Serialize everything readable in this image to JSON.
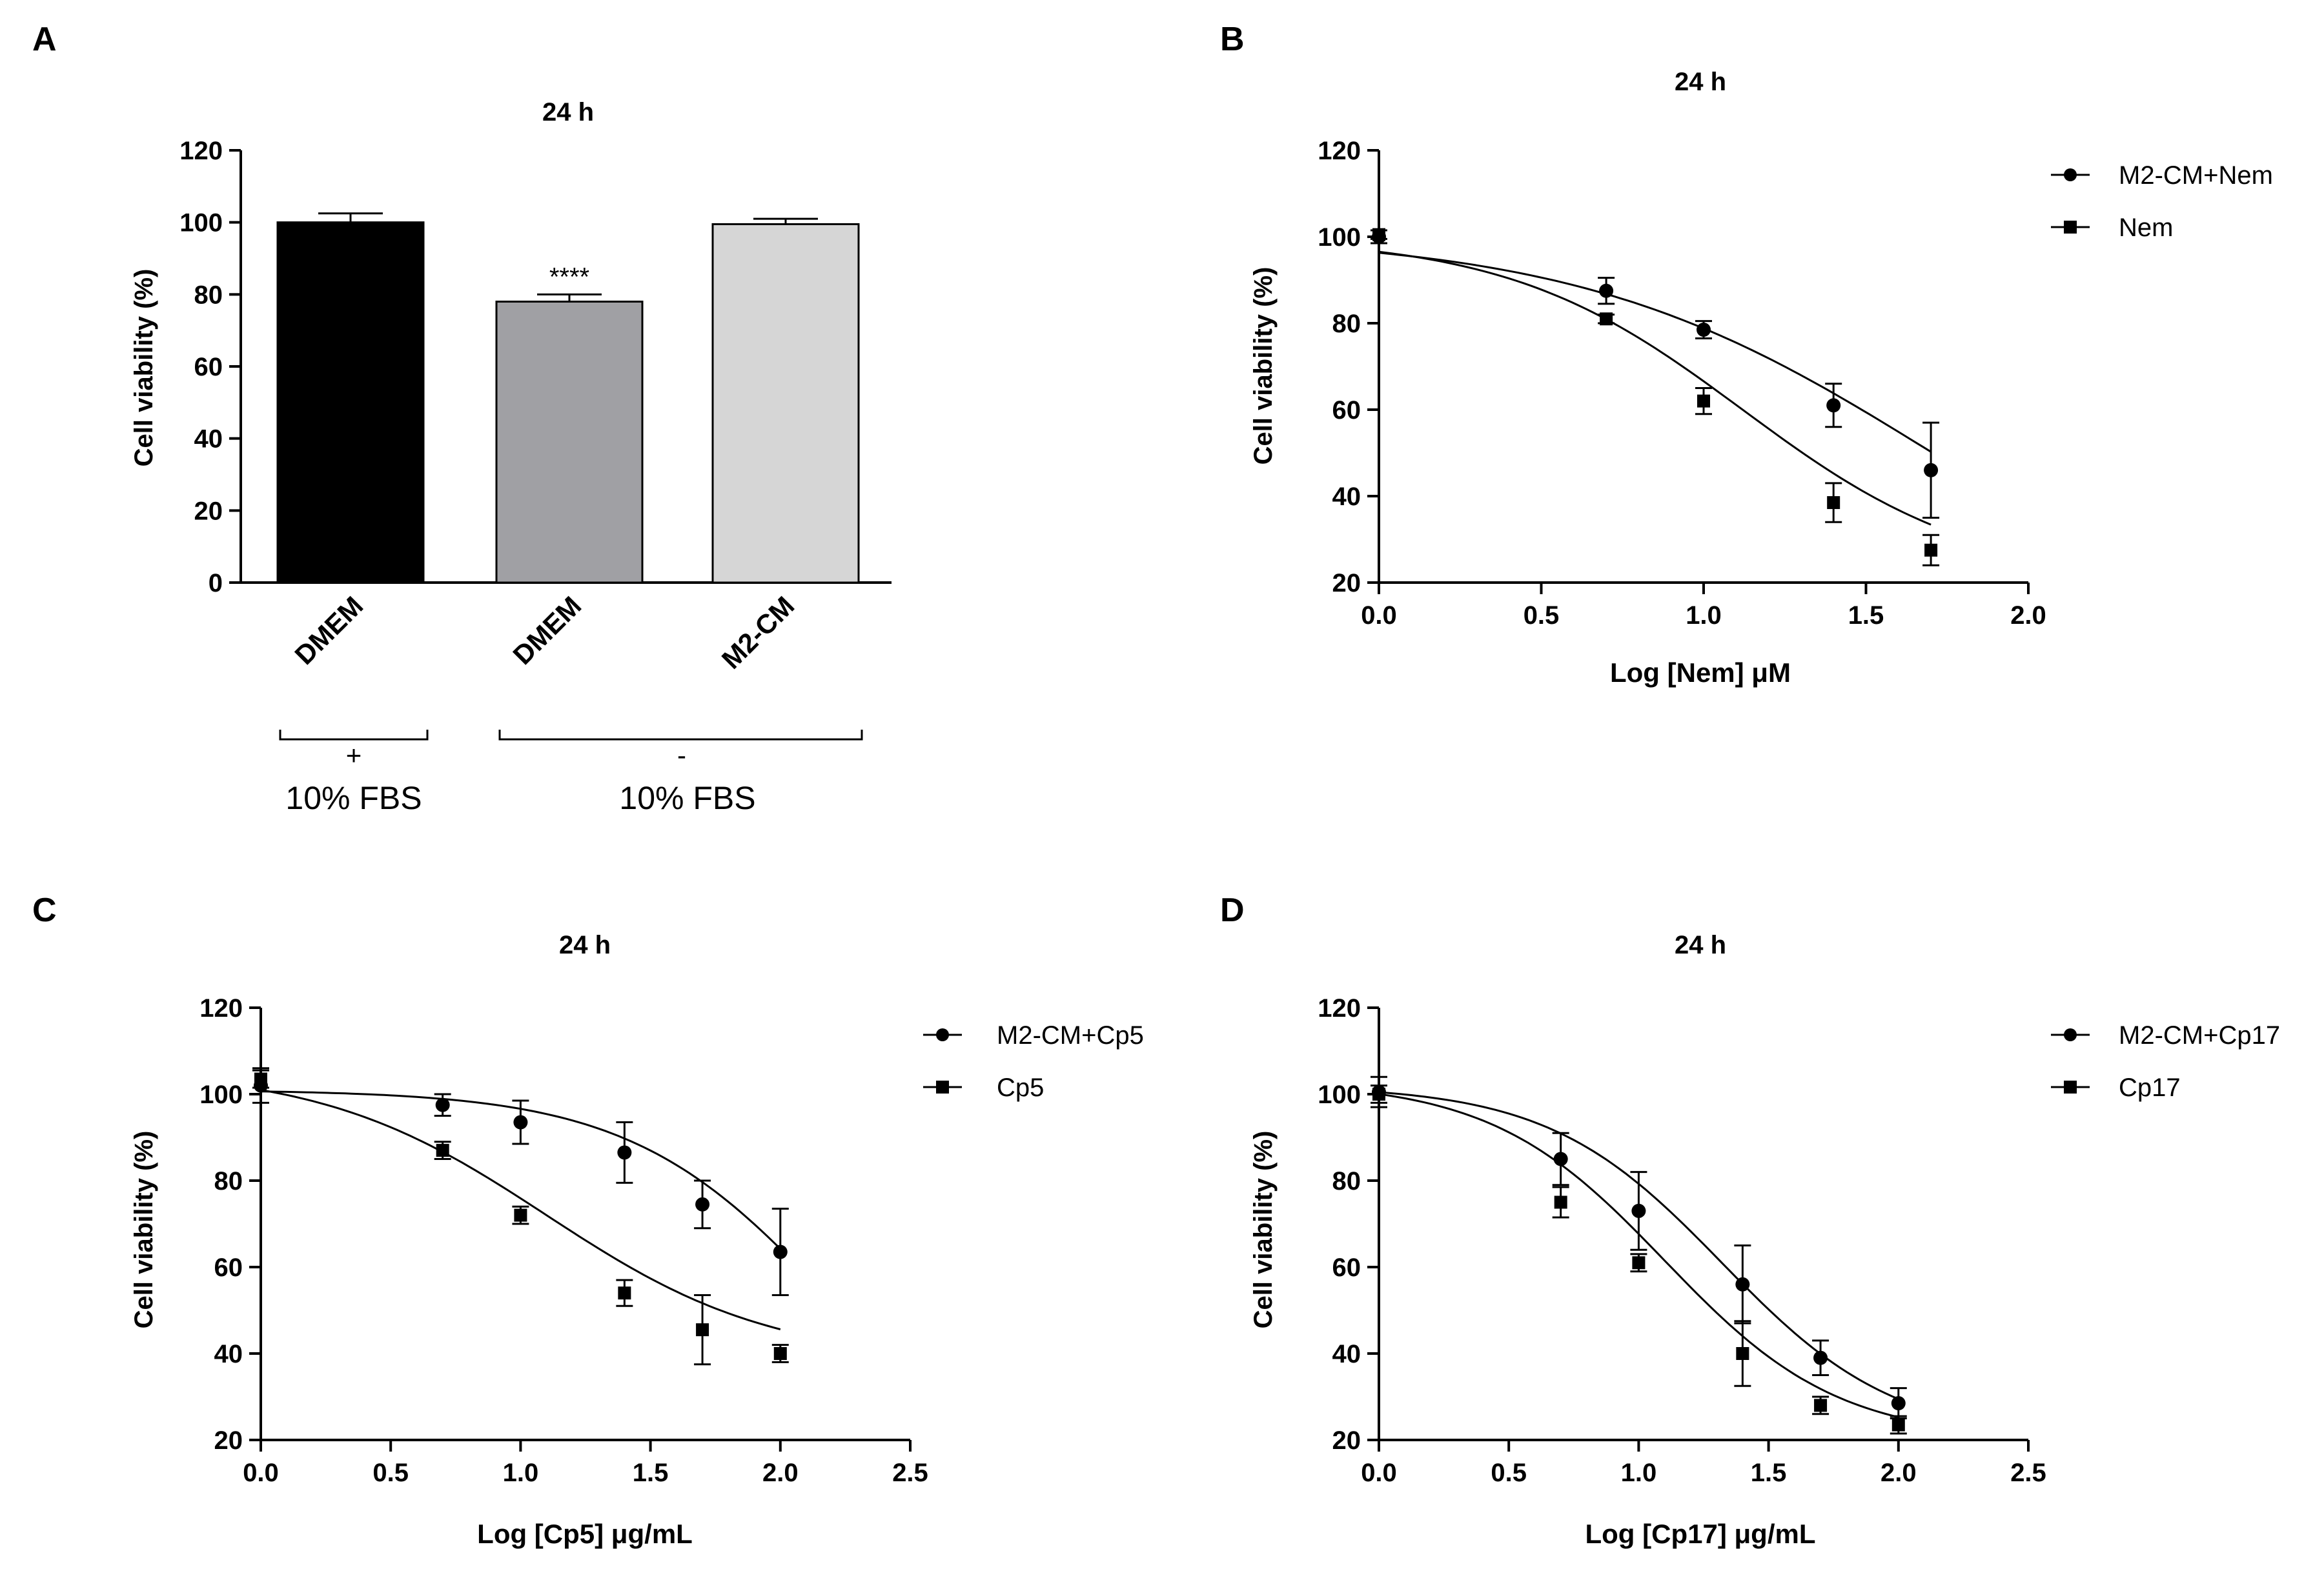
{
  "chart_data": [
    {
      "panel_label": "A",
      "type": "bar",
      "title": "24 h",
      "ylabel": "Cell viability (%)",
      "ylim": [
        0,
        120
      ],
      "yticks": [
        0,
        20,
        40,
        60,
        80,
        100,
        120
      ],
      "categories": [
        "DMEM",
        "DMEM",
        "M2-CM"
      ],
      "values": [
        100,
        78,
        99.5
      ],
      "errors": [
        2.5,
        2,
        1.5
      ],
      "bar_colors": [
        "#000000",
        "#a0a0a4",
        "#d6d6d6"
      ],
      "significance": [
        {
          "bar": 1,
          "label": "****"
        }
      ],
      "groups": [
        {
          "bars": [
            0
          ],
          "sign": "+",
          "label": "10% FBS"
        },
        {
          "bars": [
            1,
            2
          ],
          "sign": "-",
          "label": "10% FBS"
        }
      ]
    },
    {
      "panel_label": "B",
      "type": "scatter",
      "title": "24 h",
      "ylabel": "Cell viability (%)",
      "xlabel": "Log [Nem] μM",
      "xlim": [
        0,
        2
      ],
      "ylim": [
        20,
        120
      ],
      "xticks": [
        "0.0",
        "0.5",
        "1.0",
        "1.5",
        "2.0"
      ],
      "yticks": [
        20,
        40,
        60,
        80,
        100,
        120
      ],
      "legend_position": "top-right",
      "series": [
        {
          "name": "M2-CM+Nem",
          "marker": "circle",
          "x": [
            0,
            0.7,
            1.0,
            1.4,
            1.7
          ],
          "y": [
            100,
            87.5,
            78.5,
            61,
            46
          ],
          "err": [
            1.5,
            3,
            2,
            5,
            11
          ],
          "fit": {
            "top": 100.5,
            "bottom": 0,
            "logEC50": 1.7,
            "hill": 0.8
          }
        },
        {
          "name": "Nem",
          "marker": "square",
          "x": [
            0,
            0.7,
            1.0,
            1.4,
            1.7
          ],
          "y": [
            100.5,
            81,
            62,
            38.5,
            27.5
          ],
          "err": [
            1,
            1,
            3,
            4.5,
            3.5
          ],
          "fit": {
            "top": 100,
            "bottom": 20,
            "logEC50": 1.12,
            "hill": 1.2
          }
        }
      ]
    },
    {
      "panel_label": "C",
      "type": "scatter",
      "title": "24 h",
      "ylabel": "Cell viability (%)",
      "xlabel": "Log [Cp5] μg/mL",
      "xlim": [
        0,
        2.5
      ],
      "ylim": [
        20,
        120
      ],
      "xticks": [
        "0.0",
        "0.5",
        "1.0",
        "1.5",
        "2.0",
        "2.5"
      ],
      "yticks": [
        20,
        40,
        60,
        80,
        100,
        120
      ],
      "legend_position": "top-right",
      "series": [
        {
          "name": "M2-CM+Cp5",
          "marker": "circle",
          "x": [
            0,
            0.7,
            1.0,
            1.4,
            1.7,
            2.0
          ],
          "y": [
            102,
            97.5,
            93.5,
            86.5,
            74.5,
            63.5
          ],
          "err": [
            4,
            2.5,
            5,
            7,
            5.5,
            10
          ],
          "fit": {
            "top": 101,
            "bottom": 0,
            "logEC50": 2.22,
            "hill": 1.1
          }
        },
        {
          "name": "Cp5",
          "marker": "square",
          "x": [
            0,
            0.7,
            1.0,
            1.4,
            1.7,
            2.0
          ],
          "y": [
            103.5,
            87,
            72,
            54,
            45.5,
            40
          ],
          "err": [
            2,
            2,
            2,
            3,
            8,
            2
          ],
          "fit": {
            "top": 106,
            "bottom": 38,
            "logEC50": 1.1,
            "hill": 1.0
          }
        }
      ]
    },
    {
      "panel_label": "D",
      "type": "scatter",
      "title": "24 h",
      "ylabel": "Cell viability (%)",
      "xlabel": "Log [Cp17] μg/mL",
      "xlim": [
        0,
        2.5
      ],
      "ylim": [
        20,
        120
      ],
      "xticks": [
        "0.0",
        "0.5",
        "1.0",
        "1.5",
        "2.0",
        "2.5"
      ],
      "yticks": [
        20,
        40,
        60,
        80,
        100,
        120
      ],
      "legend_position": "top-right",
      "series": [
        {
          "name": "M2-CM+Cp17",
          "marker": "circle",
          "x": [
            0,
            0.7,
            1.0,
            1.4,
            1.7,
            2.0
          ],
          "y": [
            100.5,
            85,
            73,
            56,
            39,
            28.5
          ],
          "err": [
            3.5,
            6,
            9,
            9,
            4,
            3.5
          ],
          "fit": {
            "top": 102,
            "bottom": 20,
            "logEC50": 1.32,
            "hill": 1.3
          }
        },
        {
          "name": "Cp17",
          "marker": "square",
          "x": [
            0,
            0.7,
            1.0,
            1.4,
            1.7,
            2.0
          ],
          "y": [
            100,
            75,
            61,
            40,
            28,
            23.5
          ],
          "err": [
            2,
            3.5,
            2,
            7.5,
            2,
            2
          ],
          "fit": {
            "top": 103,
            "bottom": 20,
            "logEC50": 1.1,
            "hill": 1.3
          }
        }
      ]
    }
  ]
}
